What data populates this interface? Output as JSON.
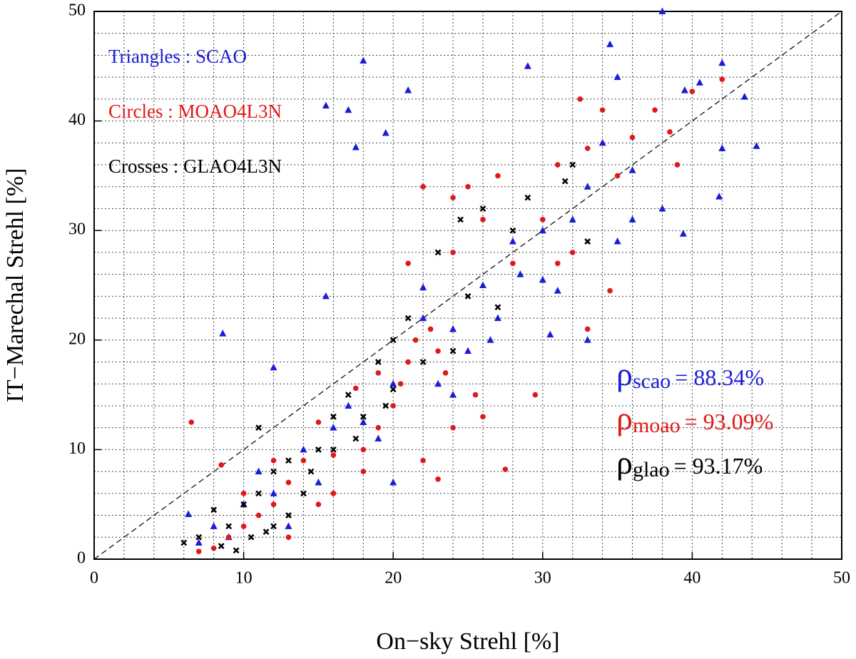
{
  "chart_data": {
    "type": "scatter",
    "x_label": "On−sky Strehl [%]",
    "y_label": "IT−Marechal Strehl [%]",
    "xlim": [
      0,
      50
    ],
    "ylim": [
      0,
      50
    ],
    "xticks": [
      0,
      10,
      20,
      30,
      40,
      50
    ],
    "yticks": [
      0,
      10,
      20,
      30,
      40,
      50
    ],
    "x_minor_grid": [
      2,
      4,
      6,
      8,
      12,
      14,
      16,
      18,
      22,
      24,
      26,
      28,
      32,
      34,
      36,
      38,
      42,
      44,
      46,
      48
    ],
    "y_minor_grid": [
      2,
      4,
      6,
      8,
      12,
      14,
      16,
      18,
      22,
      24,
      26,
      28,
      32,
      34,
      36,
      38,
      42,
      44,
      46,
      48
    ],
    "grid": true,
    "diagonal": {
      "x": [
        0,
        50
      ],
      "y": [
        0,
        50
      ]
    },
    "series": [
      {
        "name": "Triangles : SCAO",
        "color": "#1c1cd8",
        "marker": "triangle",
        "x": [
          38,
          34.5,
          18,
          29,
          42,
          35,
          40.5,
          21,
          43.5,
          15.5,
          17,
          39.5,
          19.5,
          17.5,
          44.3,
          42,
          36,
          33,
          38,
          41.8,
          39.4,
          32,
          35,
          30,
          28.5,
          31,
          26,
          22,
          33,
          27,
          24,
          15.5,
          8.6,
          12,
          20,
          22,
          25,
          17,
          14,
          10,
          12,
          8,
          6.3,
          9,
          7,
          13,
          20,
          11,
          16,
          19,
          24,
          30,
          36,
          28,
          34,
          23,
          18,
          26.5,
          30.5,
          15
        ],
        "values": [
          50,
          47,
          45.5,
          45,
          45.3,
          44,
          43.5,
          42.8,
          42.2,
          41.4,
          41,
          42.8,
          38.9,
          37.6,
          37.7,
          37.5,
          35.5,
          34,
          32,
          33.1,
          29.7,
          31,
          29,
          30,
          26,
          24.5,
          25,
          24.8,
          20,
          22,
          21,
          24,
          20.6,
          17.5,
          16,
          22,
          19,
          14,
          10,
          5,
          6,
          3,
          4.1,
          2,
          1.5,
          3,
          7,
          8,
          12,
          11,
          15,
          25.5,
          31,
          29,
          38,
          16,
          12.5,
          20,
          20.5,
          7
        ]
      },
      {
        "name": "Circles : MOAO4L3N",
        "color": "#e01818",
        "marker": "circle",
        "x": [
          42,
          40,
          37.5,
          34,
          32.5,
          38.5,
          36,
          33,
          31,
          27,
          25,
          22,
          24,
          26,
          30,
          32,
          34.5,
          33,
          29.5,
          31,
          28,
          24,
          21,
          22.5,
          23,
          21,
          20,
          19,
          18,
          24,
          25.5,
          17.5,
          15,
          14,
          13,
          12,
          11,
          10,
          9,
          8,
          7,
          6.5,
          8.5,
          16,
          18,
          22,
          20.5,
          23.5,
          26,
          27.5,
          19,
          21.5,
          15,
          13,
          10,
          12,
          16,
          23,
          35,
          39
        ],
        "values": [
          43.8,
          42.7,
          41,
          41,
          42,
          39,
          38.5,
          37.5,
          36,
          35,
          34,
          34,
          33,
          31,
          31,
          28,
          24.5,
          21,
          15,
          27,
          27,
          28,
          27,
          21,
          19,
          18,
          14,
          12,
          10,
          12,
          15,
          15.6,
          12.5,
          9,
          7,
          5,
          4,
          3,
          2,
          1,
          0.7,
          12.5,
          8.6,
          6,
          8,
          9,
          16,
          17,
          13,
          8.2,
          17,
          20,
          5,
          2,
          6,
          9,
          9.5,
          7.3,
          35,
          36
        ]
      },
      {
        "name": "Crosses : GLAO4L3N",
        "color": "#000000",
        "marker": "cross",
        "x": [
          32,
          31.5,
          29,
          28,
          26,
          24.5,
          23,
          21,
          20,
          19,
          17,
          16,
          15,
          13,
          12,
          11,
          11,
          10,
          9,
          8,
          7,
          6,
          14,
          12,
          9.5,
          10.5,
          22,
          18,
          20,
          25,
          27,
          33,
          16,
          13,
          11.5,
          8.5,
          17.5,
          19.5,
          14.5,
          24
        ],
        "values": [
          36,
          34.5,
          33,
          30,
          32,
          31,
          28,
          22,
          20,
          18,
          15,
          13,
          10,
          9,
          8,
          12,
          6,
          5,
          3,
          4.5,
          2,
          1.5,
          6,
          3,
          0.8,
          2,
          18,
          13,
          15.5,
          24,
          23,
          29,
          10,
          4,
          2.5,
          1.2,
          11,
          14,
          8,
          19
        ]
      }
    ],
    "annotations": [
      {
        "symbol": "ρ",
        "sub": "scao",
        "text": "= 88.34%",
        "color": "#1c1cd8"
      },
      {
        "symbol": "ρ",
        "sub": "moao",
        "text": "= 93.09%",
        "color": "#e01818"
      },
      {
        "symbol": "ρ",
        "sub": "glao",
        "text": "= 93.17%",
        "color": "#000000"
      }
    ]
  }
}
